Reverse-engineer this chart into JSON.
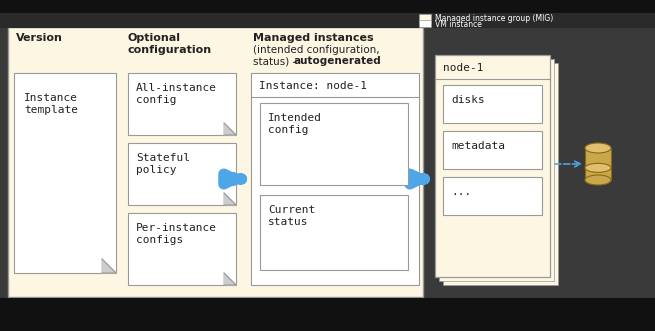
{
  "fig_w": 6.55,
  "fig_h": 3.31,
  "dpi": 100,
  "bg_outer": "#3a3a3a",
  "bg_top_bar": "#1a1a1a",
  "bg_main": "#2e2e2e",
  "cream": "#fdf6e3",
  "white": "#ffffff",
  "blue_arrow": "#4da6e8",
  "dark": "#222222",
  "gray_border": "#999999",
  "fold_color": "#cccccc",
  "legend_cream_label": "Managed instance group (MIG)",
  "legend_white_label": "VM instance",
  "version_label": "Version",
  "opt_config_label": "Optional\nconfiguration",
  "managed_bold": "Managed instances",
  "managed_sub1": "(intended configuration,",
  "managed_sub2": "status) - ",
  "managed_auto": "autogenerated",
  "instance_template_text": "Instance\ntemplate",
  "all_instance_text": "All-instance\nconfig",
  "stateful_policy_text": "Stateful\npolicy",
  "per_instance_text": "Per-instance\nconfigs",
  "node1_header": "Instance: node-1",
  "intended_text": "Intended\nconfig",
  "current_text": "Current\nstatus",
  "node1_label": "node-1",
  "disks_text": "disks",
  "metadata_text": "metadata",
  "dots_text": "...",
  "cyl_color": "#c8a84b",
  "cyl_top_color": "#e0c070",
  "cyl_dark": "#8B6914"
}
